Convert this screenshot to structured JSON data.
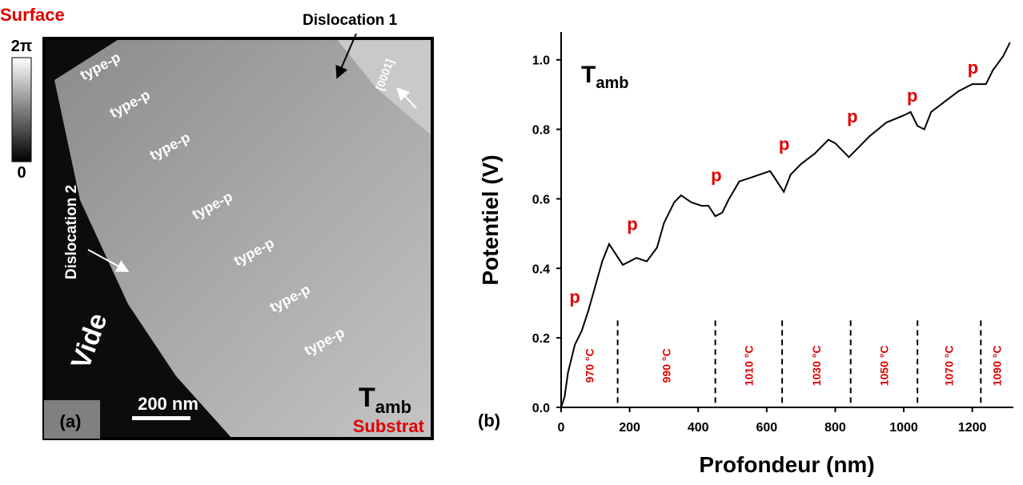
{
  "image_panel": {
    "label": "(a)",
    "surface": "Surface",
    "substrate": "Substrat",
    "colorbar_max": "2π",
    "colorbar_min": "0",
    "scale_bar": "200 nm",
    "vacuum": "Vide",
    "temperature": "T",
    "temperature_sub": "amb",
    "dislocation_1": "Dislocation 1",
    "dislocation_2": "Dislocation 2",
    "direction": "[0001]",
    "regions": [
      "type-p",
      "type-p",
      "type-p",
      "type-p",
      "type-p",
      "type-p",
      "type-p"
    ]
  },
  "chart_data": {
    "type": "line",
    "panel_label": "(b)",
    "x_label": "Profondeur (nm)",
    "y_label": "Potentiel (V)",
    "title": "T",
    "title_sub": "amb",
    "color": "#000000",
    "x": [
      0,
      10,
      20,
      40,
      60,
      80,
      100,
      120,
      140,
      160,
      180,
      200,
      220,
      250,
      280,
      300,
      330,
      350,
      380,
      410,
      430,
      450,
      470,
      490,
      520,
      550,
      580,
      610,
      630,
      650,
      670,
      700,
      740,
      780,
      800,
      820,
      840,
      860,
      900,
      950,
      1000,
      1020,
      1040,
      1060,
      1080,
      1120,
      1160,
      1200,
      1240,
      1260,
      1290,
      1310
    ],
    "values": [
      0,
      0.03,
      0.1,
      0.18,
      0.22,
      0.28,
      0.35,
      0.42,
      0.47,
      0.44,
      0.41,
      0.42,
      0.43,
      0.42,
      0.46,
      0.53,
      0.59,
      0.61,
      0.59,
      0.58,
      0.58,
      0.55,
      0.56,
      0.6,
      0.65,
      0.66,
      0.67,
      0.68,
      0.65,
      0.62,
      0.67,
      0.7,
      0.73,
      0.77,
      0.76,
      0.74,
      0.72,
      0.74,
      0.78,
      0.82,
      0.84,
      0.85,
      0.81,
      0.8,
      0.85,
      0.88,
      0.91,
      0.93,
      0.93,
      0.97,
      1.01,
      1.05
    ],
    "xlim": [
      0,
      1320
    ],
    "ylim": [
      0,
      1.08
    ],
    "xticks": [
      0,
      200,
      400,
      600,
      800,
      1000,
      1200
    ],
    "yticks": [
      {
        "value": 0,
        "label": "0.0"
      },
      0.2,
      0.4,
      0.6,
      0.8,
      {
        "value": 1,
        "label": "1.0"
      }
    ],
    "boundaries": [
      165,
      450,
      645,
      845,
      1040,
      1225
    ],
    "zones": [
      "970 °C",
      "990 °C",
      "1010 °C",
      "1030 °C",
      "1050 °C",
      "1070 °C",
      "1090 °C"
    ],
    "annotations": [
      {
        "text": "p",
        "x": 40,
        "y": 0.3
      },
      {
        "text": "p",
        "x": 208,
        "y": 0.51
      },
      {
        "text": "p",
        "x": 453,
        "y": 0.65
      },
      {
        "text": "p",
        "x": 651,
        "y": 0.74
      },
      {
        "text": "p",
        "x": 850,
        "y": 0.82
      },
      {
        "text": "p",
        "x": 1025,
        "y": 0.88
      },
      {
        "text": "p",
        "x": 1202,
        "y": 0.96
      }
    ]
  }
}
